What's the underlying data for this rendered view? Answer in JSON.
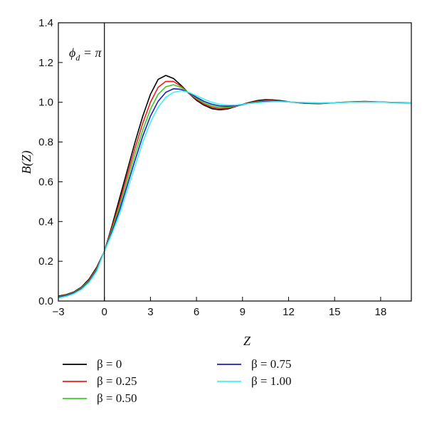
{
  "chart_data": {
    "type": "line",
    "xlabel": "Z",
    "ylabel": "B(Z)",
    "xlim": [
      -3,
      20
    ],
    "ylim": [
      0,
      1.4
    ],
    "xticks": [
      -3,
      0,
      3,
      6,
      9,
      12,
      15,
      18
    ],
    "yticks": [
      0.0,
      0.2,
      0.4,
      0.6,
      0.8,
      1.0,
      1.2,
      1.4
    ],
    "xtick_labels": [
      "−3",
      "0",
      "3",
      "6",
      "9",
      "12",
      "15",
      "18"
    ],
    "ytick_labels": [
      "0.0",
      "0.2",
      "0.4",
      "0.6",
      "0.8",
      "1.0",
      "1.2",
      "1.4"
    ],
    "grid": false,
    "annotation": "φd = π",
    "vertical_line_x": 0,
    "legend_position": "bottom",
    "series": [
      {
        "name": "β = 0",
        "color": "#000000",
        "points": [
          [
            -3,
            0.025
          ],
          [
            -2.5,
            0.032
          ],
          [
            -2,
            0.045
          ],
          [
            -1.5,
            0.07
          ],
          [
            -1,
            0.11
          ],
          [
            -0.5,
            0.17
          ],
          [
            0,
            0.25
          ],
          [
            0.5,
            0.38
          ],
          [
            1,
            0.52
          ],
          [
            1.5,
            0.66
          ],
          [
            2,
            0.8
          ],
          [
            2.5,
            0.93
          ],
          [
            3,
            1.04
          ],
          [
            3.5,
            1.115
          ],
          [
            4,
            1.135
          ],
          [
            4.5,
            1.12
          ],
          [
            5,
            1.085
          ],
          [
            5.5,
            1.045
          ],
          [
            6,
            1.01
          ],
          [
            6.5,
            0.985
          ],
          [
            7,
            0.968
          ],
          [
            7.5,
            0.962
          ],
          [
            8,
            0.966
          ],
          [
            8.5,
            0.977
          ],
          [
            9,
            0.99
          ],
          [
            9.5,
            1.0
          ],
          [
            10,
            1.009
          ],
          [
            10.5,
            1.013
          ],
          [
            11,
            1.012
          ],
          [
            11.5,
            1.008
          ],
          [
            12,
            1.003
          ],
          [
            13,
            0.995
          ],
          [
            14,
            0.993
          ],
          [
            15,
            0.998
          ],
          [
            16,
            1.002
          ],
          [
            17,
            1.004
          ],
          [
            18,
            1.001
          ],
          [
            19,
            0.998
          ],
          [
            20,
            0.997
          ]
        ]
      },
      {
        "name": "β = 0.25",
        "color": "#e8201c",
        "points": [
          [
            -3,
            0.022
          ],
          [
            -2.5,
            0.03
          ],
          [
            -2,
            0.043
          ],
          [
            -1.5,
            0.068
          ],
          [
            -1,
            0.105
          ],
          [
            -0.5,
            0.165
          ],
          [
            0,
            0.25
          ],
          [
            0.5,
            0.37
          ],
          [
            1,
            0.5
          ],
          [
            1.5,
            0.635
          ],
          [
            2,
            0.77
          ],
          [
            2.5,
            0.895
          ],
          [
            3,
            1.0
          ],
          [
            3.5,
            1.075
          ],
          [
            4,
            1.105
          ],
          [
            4.5,
            1.105
          ],
          [
            5,
            1.08
          ],
          [
            5.5,
            1.045
          ],
          [
            6,
            1.015
          ],
          [
            6.5,
            0.99
          ],
          [
            7,
            0.975
          ],
          [
            7.5,
            0.968
          ],
          [
            8,
            0.97
          ],
          [
            8.5,
            0.978
          ],
          [
            9,
            0.989
          ],
          [
            9.5,
            0.998
          ],
          [
            10,
            1.005
          ],
          [
            10.5,
            1.009
          ],
          [
            11,
            1.009
          ],
          [
            11.5,
            1.006
          ],
          [
            12,
            1.002
          ],
          [
            13,
            0.996
          ],
          [
            14,
            0.994
          ],
          [
            15,
            0.998
          ],
          [
            16,
            1.001
          ],
          [
            17,
            1.003
          ],
          [
            18,
            1.001
          ],
          [
            19,
            0.999
          ],
          [
            20,
            0.998
          ]
        ]
      },
      {
        "name": "β = 0.50",
        "color": "#3ccc2a",
        "points": [
          [
            -3,
            0.02
          ],
          [
            -2.5,
            0.028
          ],
          [
            -2,
            0.041
          ],
          [
            -1.5,
            0.065
          ],
          [
            -1,
            0.1
          ],
          [
            -0.5,
            0.16
          ],
          [
            0,
            0.25
          ],
          [
            0.5,
            0.36
          ],
          [
            1,
            0.48
          ],
          [
            1.5,
            0.61
          ],
          [
            2,
            0.74
          ],
          [
            2.5,
            0.86
          ],
          [
            3,
            0.965
          ],
          [
            3.5,
            1.04
          ],
          [
            4,
            1.078
          ],
          [
            4.5,
            1.088
          ],
          [
            5,
            1.075
          ],
          [
            5.5,
            1.048
          ],
          [
            6,
            1.02
          ],
          [
            6.5,
            0.996
          ],
          [
            7,
            0.982
          ],
          [
            7.5,
            0.975
          ],
          [
            8,
            0.975
          ],
          [
            8.5,
            0.98
          ],
          [
            9,
            0.988
          ],
          [
            9.5,
            0.996
          ],
          [
            10,
            1.002
          ],
          [
            10.5,
            1.006
          ],
          [
            11,
            1.007
          ],
          [
            11.5,
            1.005
          ],
          [
            12,
            1.002
          ],
          [
            13,
            0.997
          ],
          [
            14,
            0.995
          ],
          [
            15,
            0.998
          ],
          [
            16,
            1.001
          ],
          [
            17,
            1.002
          ],
          [
            18,
            1.001
          ],
          [
            19,
            0.999
          ],
          [
            20,
            0.998
          ]
        ]
      },
      {
        "name": "β = 0.75",
        "color": "#1f1fb8",
        "points": [
          [
            -3,
            0.018
          ],
          [
            -2.5,
            0.026
          ],
          [
            -2,
            0.039
          ],
          [
            -1.5,
            0.062
          ],
          [
            -1,
            0.097
          ],
          [
            -0.5,
            0.155
          ],
          [
            0,
            0.25
          ],
          [
            0.5,
            0.35
          ],
          [
            1,
            0.46
          ],
          [
            1.5,
            0.585
          ],
          [
            2,
            0.71
          ],
          [
            2.5,
            0.83
          ],
          [
            3,
            0.93
          ],
          [
            3.5,
            1.005
          ],
          [
            4,
            1.05
          ],
          [
            4.5,
            1.068
          ],
          [
            5,
            1.065
          ],
          [
            5.5,
            1.048
          ],
          [
            6,
            1.025
          ],
          [
            6.5,
            1.004
          ],
          [
            7,
            0.99
          ],
          [
            7.5,
            0.982
          ],
          [
            8,
            0.98
          ],
          [
            8.5,
            0.983
          ],
          [
            9,
            0.989
          ],
          [
            9.5,
            0.995
          ],
          [
            10,
            1.0
          ],
          [
            10.5,
            1.004
          ],
          [
            11,
            1.005
          ],
          [
            11.5,
            1.004
          ],
          [
            12,
            1.002
          ],
          [
            13,
            0.998
          ],
          [
            14,
            0.996
          ],
          [
            15,
            0.998
          ],
          [
            16,
            1.0
          ],
          [
            17,
            1.001
          ],
          [
            18,
            1.001
          ],
          [
            19,
            0.999
          ],
          [
            20,
            0.998
          ]
        ]
      },
      {
        "name": "β = 1.00",
        "color": "#3ff0f0",
        "points": [
          [
            -3,
            0.015
          ],
          [
            -2.5,
            0.023
          ],
          [
            -2,
            0.036
          ],
          [
            -1.5,
            0.058
          ],
          [
            -1,
            0.093
          ],
          [
            -0.5,
            0.15
          ],
          [
            0,
            0.25
          ],
          [
            0.5,
            0.34
          ],
          [
            1,
            0.44
          ],
          [
            1.5,
            0.56
          ],
          [
            2,
            0.68
          ],
          [
            2.5,
            0.8
          ],
          [
            3,
            0.9
          ],
          [
            3.5,
            0.975
          ],
          [
            4,
            1.025
          ],
          [
            4.5,
            1.05
          ],
          [
            5,
            1.058
          ],
          [
            5.5,
            1.05
          ],
          [
            6,
            1.033
          ],
          [
            6.5,
            1.015
          ],
          [
            7,
            1.0
          ],
          [
            7.5,
            0.99
          ],
          [
            8,
            0.986
          ],
          [
            8.5,
            0.986
          ],
          [
            9,
            0.99
          ],
          [
            9.5,
            0.994
          ],
          [
            10,
            0.998
          ],
          [
            10.5,
            1.001
          ],
          [
            11,
            1.003
          ],
          [
            11.5,
            1.003
          ],
          [
            12,
            1.002
          ],
          [
            13,
            0.999
          ],
          [
            14,
            0.997
          ],
          [
            15,
            0.998
          ],
          [
            16,
            1.0
          ],
          [
            17,
            1.001
          ],
          [
            18,
            1.0
          ],
          [
            19,
            0.999
          ],
          [
            20,
            0.998
          ]
        ]
      }
    ]
  }
}
